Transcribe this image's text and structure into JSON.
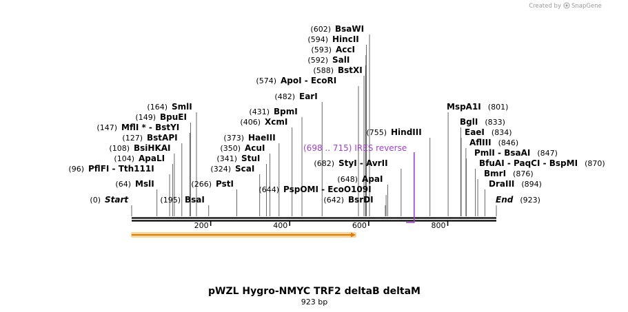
{
  "credit": {
    "prefix": "Created by",
    "brand": "SnapGene"
  },
  "map": {
    "title": "pWZL Hygro-NMYC TRF2 deltaB deltaM",
    "length_label": "923 bp",
    "total_bp": 923,
    "ticks": [
      {
        "pos": 200,
        "label": "200"
      },
      {
        "pos": 400,
        "label": "400"
      },
      {
        "pos": 600,
        "label": "600"
      },
      {
        "pos": 800,
        "label": "800"
      }
    ],
    "colors": {
      "feature": "#a040c8",
      "arrow_fill": "#e07a10",
      "arrow_glow": "#f7d79a",
      "backbone": "#000000"
    }
  },
  "feature": {
    "label": "(698 .. 715)  IRES reverse",
    "start": 698,
    "end": 715
  },
  "orf": {
    "start": 0,
    "end": 567,
    "direction": "forward"
  },
  "sites": [
    {
      "id": "start",
      "num": "(0)",
      "name": "Start",
      "pos": 0,
      "italic": true
    },
    {
      "id": "mslI",
      "num": "(64)",
      "name": "MslI",
      "pos": 64
    },
    {
      "id": "pflfi",
      "num": "(96)",
      "name": "PflFI  - Tth111I",
      "pos": 96
    },
    {
      "id": "apali",
      "num": "(104)",
      "name": "ApaLI",
      "pos": 104
    },
    {
      "id": "bsihkai",
      "num": "(108)",
      "name": "BsiHKAI",
      "pos": 108
    },
    {
      "id": "bstapi",
      "num": "(127)",
      "name": "BstAPI",
      "pos": 127
    },
    {
      "id": "mfli",
      "num": "(147)",
      "name": "MflI * - BstYI",
      "pos": 147
    },
    {
      "id": "bpuei",
      "num": "(149)",
      "name": "BpuEI",
      "pos": 149
    },
    {
      "id": "smli",
      "num": "(164)",
      "name": "SmlI",
      "pos": 164
    },
    {
      "id": "bsai",
      "num": "(195)",
      "name": "BsaI",
      "pos": 195
    },
    {
      "id": "psti",
      "num": "(266)",
      "name": "PstI",
      "pos": 266
    },
    {
      "id": "scai",
      "num": "(324)",
      "name": "ScaI",
      "pos": 324
    },
    {
      "id": "stui",
      "num": "(341)",
      "name": "StuI",
      "pos": 341
    },
    {
      "id": "acui",
      "num": "(350)",
      "name": "AcuI",
      "pos": 350
    },
    {
      "id": "haeiii",
      "num": "(373)",
      "name": "HaeIII",
      "pos": 373
    },
    {
      "id": "xcmi",
      "num": "(406)",
      "name": "XcmI",
      "pos": 406
    },
    {
      "id": "bpmi",
      "num": "(431)",
      "name": "BpmI",
      "pos": 431
    },
    {
      "id": "eari",
      "num": "(482)",
      "name": "EarI",
      "pos": 482
    },
    {
      "id": "apoi",
      "num": "(574)",
      "name": "ApoI  - EcoRI",
      "pos": 574
    },
    {
      "id": "bstxi",
      "num": "(588)",
      "name": "BstXI",
      "pos": 588
    },
    {
      "id": "sali",
      "num": "(592)",
      "name": "SalI",
      "pos": 592
    },
    {
      "id": "acci",
      "num": "(593)",
      "name": "AccI",
      "pos": 593
    },
    {
      "id": "hincii",
      "num": "(594)",
      "name": "HincII",
      "pos": 594
    },
    {
      "id": "bsawi",
      "num": "(602)",
      "name": "BsaWI",
      "pos": 602
    },
    {
      "id": "bsrdi",
      "num": "(642)",
      "name": "BsrDI",
      "pos": 642
    },
    {
      "id": "pspomi",
      "num": "(644)",
      "name": "PspOMI  - EcoO109I",
      "pos": 644
    },
    {
      "id": "apai",
      "num": "(648)",
      "name": "ApaI",
      "pos": 648
    },
    {
      "id": "styi",
      "num": "(682)",
      "name": "StyI  - AvrII",
      "pos": 682
    },
    {
      "id": "hindiii",
      "num": "(755)",
      "name": "HindIII",
      "pos": 755
    },
    {
      "id": "mspa1i",
      "num": "(801)",
      "name": "MspA1I",
      "pos": 801
    },
    {
      "id": "bgli",
      "num": "(833)",
      "name": "BglI",
      "pos": 833
    },
    {
      "id": "eaei",
      "num": "(834)",
      "name": "EaeI",
      "pos": 834
    },
    {
      "id": "afliii",
      "num": "(846)",
      "name": "AflIII",
      "pos": 846
    },
    {
      "id": "pmli",
      "num": "(847)",
      "name": "PmlI  - BsaAI",
      "pos": 847
    },
    {
      "id": "bfuai",
      "num": "(870)",
      "name": "BfuAI  - PaqCI  - BspMI",
      "pos": 870
    },
    {
      "id": "bmri",
      "num": "(876)",
      "name": "BmrI",
      "pos": 876
    },
    {
      "id": "draiii",
      "num": "(894)",
      "name": "DraIII",
      "pos": 894
    },
    {
      "id": "end",
      "num": "(923)",
      "name": "End",
      "pos": 923,
      "italic": true
    }
  ]
}
